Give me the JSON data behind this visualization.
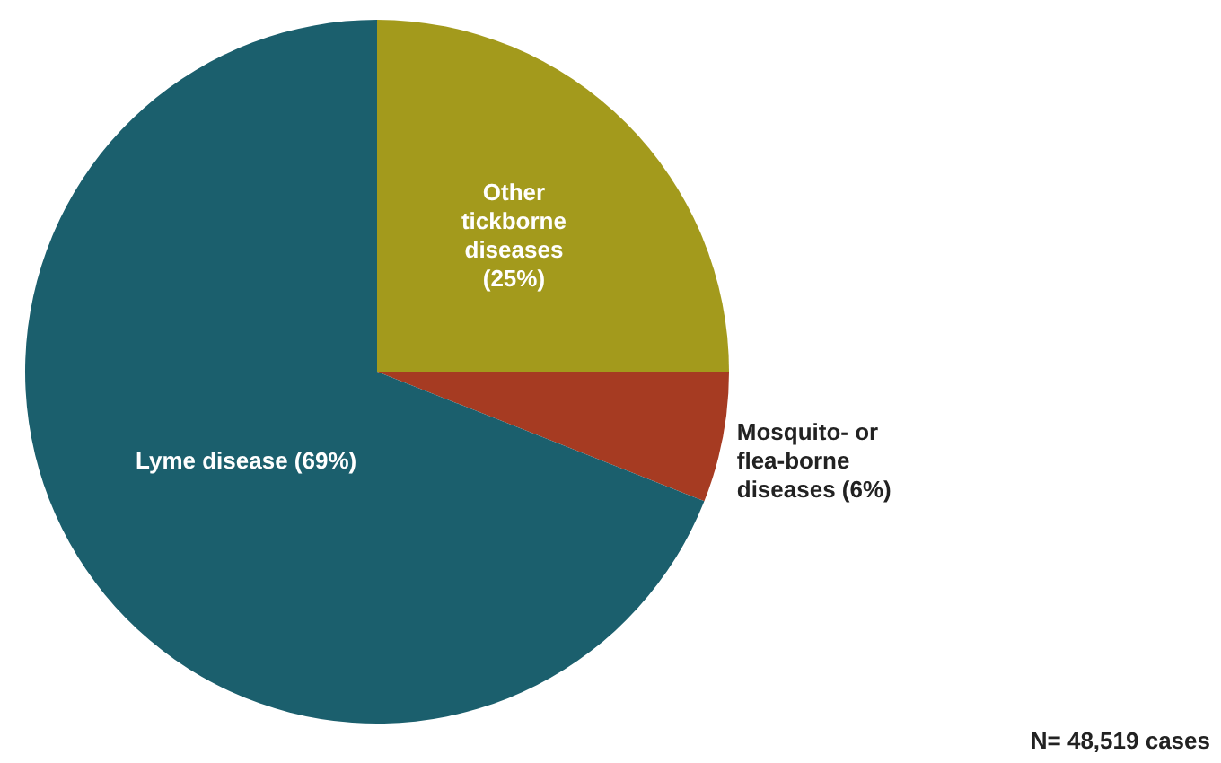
{
  "chart_data": {
    "type": "pie",
    "categories": [
      "Other tickborne diseases",
      "Mosquito- or flea-borne diseases",
      "Lyme disease"
    ],
    "values": [
      25,
      6,
      69
    ],
    "colors": [
      "#a39a1c",
      "#a63b22",
      "#1b5f6d"
    ],
    "value_labels": [
      "(25%)",
      "(6%)",
      "(69%)"
    ],
    "annotations": [
      "N= 48,519 cases"
    ]
  }
}
